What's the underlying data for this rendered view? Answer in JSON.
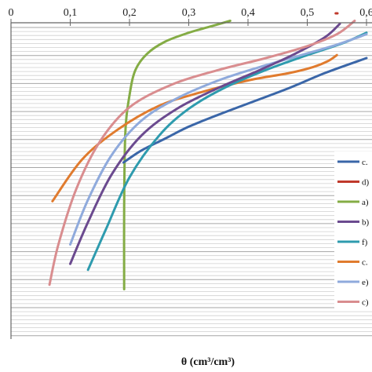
{
  "chart_data": {
    "type": "line",
    "xlabel": "θ (cm³/cm³)",
    "xlim": [
      0,
      0.6
    ],
    "x_ticks": [
      "0",
      "0,1",
      "0,2",
      "0,3",
      "0,4",
      "0,5",
      "0,6"
    ],
    "grid": true,
    "legend_position": "right",
    "series": [
      {
        "name": "c.",
        "color": "#3a66a8",
        "x": [
          0.19,
          0.22,
          0.26,
          0.3,
          0.35,
          0.41,
          0.47,
          0.53,
          0.6
        ],
        "y": [
          0.0,
          0.08,
          0.16,
          0.24,
          0.32,
          0.41,
          0.5,
          0.6,
          0.7
        ]
      },
      {
        "name": "d)",
        "color": "#c0392b",
        "x": [
          0.548,
          0.551
        ],
        "y": [
          1.0,
          1.0
        ]
      },
      {
        "name": "a)",
        "color": "#84ac45",
        "x": [
          0.191,
          0.191,
          0.193,
          0.2,
          0.21,
          0.23,
          0.26,
          0.3,
          0.335,
          0.37
        ],
        "y": [
          -0.85,
          -0.3,
          0.2,
          0.45,
          0.62,
          0.73,
          0.81,
          0.87,
          0.91,
          0.95
        ]
      },
      {
        "name": "b)",
        "color": "#6b4a8f",
        "x": [
          0.1,
          0.13,
          0.17,
          0.22,
          0.28,
          0.35,
          0.42,
          0.48,
          0.53,
          0.555
        ],
        "y": [
          -0.68,
          -0.4,
          -0.08,
          0.18,
          0.36,
          0.5,
          0.62,
          0.73,
          0.84,
          0.93
        ]
      },
      {
        "name": "f)",
        "color": "#2e9bae",
        "x": [
          0.13,
          0.16,
          0.2,
          0.25,
          0.3,
          0.36,
          0.43,
          0.5,
          0.56,
          0.6
        ],
        "y": [
          -0.72,
          -0.45,
          -0.1,
          0.18,
          0.36,
          0.5,
          0.62,
          0.72,
          0.8,
          0.87
        ]
      },
      {
        "name": "c.",
        "color": "#e07b2e",
        "x": [
          0.07,
          0.12,
          0.18,
          0.25,
          0.32,
          0.4,
          0.47,
          0.51,
          0.535,
          0.55
        ],
        "y": [
          -0.26,
          0.02,
          0.22,
          0.38,
          0.47,
          0.55,
          0.6,
          0.64,
          0.68,
          0.72
        ]
      },
      {
        "name": "e)",
        "color": "#8faadc",
        "x": [
          0.1,
          0.13,
          0.17,
          0.22,
          0.28,
          0.35,
          0.42,
          0.49,
          0.55,
          0.6
        ],
        "y": [
          -0.55,
          -0.25,
          0.05,
          0.28,
          0.43,
          0.55,
          0.64,
          0.72,
          0.79,
          0.86
        ]
      },
      {
        "name": "c)",
        "color": "#d98d8f",
        "x": [
          0.065,
          0.08,
          0.11,
          0.15,
          0.2,
          0.27,
          0.35,
          0.43,
          0.5,
          0.55,
          0.58
        ],
        "y": [
          -0.82,
          -0.55,
          -0.18,
          0.14,
          0.37,
          0.52,
          0.62,
          0.7,
          0.78,
          0.86,
          0.95
        ]
      }
    ]
  }
}
